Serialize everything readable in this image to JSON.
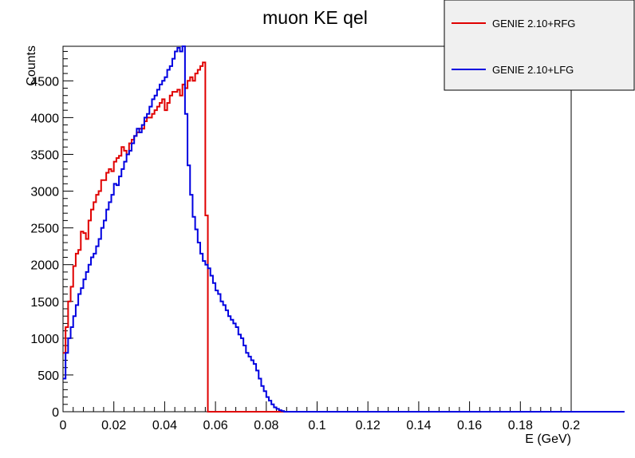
{
  "chart_data": {
    "type": "line",
    "title": "muon KE qel",
    "xlabel": "E (GeV)",
    "ylabel": "Counts",
    "xlim": [
      0,
      0.2
    ],
    "ylim": [
      0,
      4970
    ],
    "x_ticks": [
      0,
      0.02,
      0.04,
      0.06,
      0.08,
      0.1,
      0.12,
      0.14,
      0.16,
      0.18,
      0.2
    ],
    "x_tick_labels": [
      "0",
      "0.02",
      "0.04",
      "0.06",
      "0.08",
      "0.1",
      "0.12",
      "0.14",
      "0.16",
      "0.18",
      "0.2"
    ],
    "y_ticks": [
      0,
      500,
      1000,
      1500,
      2000,
      2500,
      3000,
      3500,
      4000,
      4500
    ],
    "y_tick_labels": [
      "0",
      "500",
      "1000",
      "1500",
      "2000",
      "2500",
      "3000",
      "3500",
      "4000",
      "4500"
    ],
    "grid": false,
    "legend_position": "top-right",
    "bin_width": 0.001,
    "series": [
      {
        "name": "GENIE 2.10+RFG",
        "color": "#e00000",
        "values": [
          800,
          1150,
          1500,
          1700,
          1980,
          2150,
          2200,
          2450,
          2430,
          2350,
          2600,
          2750,
          2850,
          2950,
          3000,
          3150,
          3150,
          3250,
          3300,
          3270,
          3400,
          3450,
          3480,
          3600,
          3550,
          3500,
          3650,
          3700,
          3750,
          3800,
          3850,
          3850,
          3950,
          4000,
          4000,
          4050,
          4100,
          4150,
          4200,
          4250,
          4100,
          4200,
          4300,
          4350,
          4350,
          4380,
          4300,
          4450,
          4400,
          4500,
          4550,
          4500,
          4600,
          4650,
          4700,
          4750,
          2670,
          0,
          0,
          0,
          0,
          0,
          0,
          0,
          0,
          0,
          0,
          0,
          0,
          0,
          0,
          0,
          0,
          0,
          0,
          0,
          0,
          0,
          0,
          0,
          0,
          0,
          0,
          0,
          0,
          0,
          0,
          0,
          0,
          0,
          0,
          0,
          0,
          0,
          0,
          0,
          0,
          0,
          0,
          0,
          0,
          0,
          0,
          0,
          0,
          0,
          0,
          0,
          0,
          0,
          0,
          0,
          0,
          0,
          0,
          0,
          0,
          0,
          0,
          0,
          0,
          0,
          0,
          0,
          0,
          0,
          0,
          0,
          0,
          0,
          0,
          0,
          0,
          0,
          0,
          0,
          0,
          0,
          0,
          0,
          0,
          0,
          0,
          0,
          0,
          0,
          0,
          0,
          0,
          0,
          0,
          0,
          0,
          0,
          0,
          0,
          0,
          0,
          0,
          0,
          0,
          0,
          0,
          0,
          0,
          0,
          0,
          0,
          0,
          0,
          0,
          0,
          0,
          0,
          0,
          0,
          0,
          0,
          0,
          0,
          0,
          0,
          0,
          0,
          0,
          0,
          0,
          0,
          0,
          0,
          0,
          0,
          0,
          0,
          0,
          0,
          0,
          0,
          0,
          0,
          0,
          0,
          0,
          0,
          0,
          0,
          0
        ]
      },
      {
        "name": "GENIE 2.10+LFG",
        "color": "#0000e0",
        "values": [
          450,
          800,
          1000,
          1150,
          1300,
          1450,
          1600,
          1680,
          1800,
          1900,
          2000,
          2100,
          2150,
          2250,
          2350,
          2500,
          2600,
          2750,
          2850,
          2950,
          3100,
          3080,
          3200,
          3300,
          3400,
          3500,
          3550,
          3650,
          3750,
          3850,
          3800,
          3900,
          4000,
          4050,
          4150,
          4250,
          4300,
          4380,
          4450,
          4500,
          4550,
          4650,
          4700,
          4800,
          4900,
          4950,
          4900,
          5000,
          4050,
          3350,
          2950,
          2650,
          2480,
          2300,
          2150,
          2050,
          2000,
          1950,
          1850,
          1750,
          1650,
          1600,
          1500,
          1450,
          1380,
          1300,
          1250,
          1200,
          1150,
          1050,
          1000,
          900,
          800,
          750,
          700,
          650,
          560,
          450,
          350,
          280,
          200,
          150,
          100,
          60,
          40,
          20,
          10,
          0,
          0,
          0,
          0,
          0,
          0,
          0,
          0,
          0,
          0,
          0,
          0,
          0,
          0,
          0,
          0,
          0,
          0,
          0,
          0,
          0,
          0,
          0,
          0,
          0,
          0,
          0,
          0,
          0,
          0,
          0,
          0,
          0,
          0,
          0,
          0,
          0,
          0,
          0,
          0,
          0,
          0,
          0,
          0,
          0,
          0,
          0,
          0,
          0,
          0,
          0,
          0,
          0,
          0,
          0,
          0,
          0,
          0,
          0,
          0,
          0,
          0,
          0,
          0,
          0,
          0,
          0,
          0,
          0,
          0,
          0,
          0,
          0,
          0,
          0,
          0,
          0,
          0,
          0,
          0,
          0,
          0,
          0,
          0,
          0,
          0,
          0,
          0,
          0,
          0,
          0,
          0,
          0,
          0,
          0,
          0,
          0,
          0,
          0,
          0,
          0,
          0,
          0,
          0,
          0,
          0,
          0,
          0,
          0,
          0,
          0,
          0,
          0,
          0,
          0,
          0,
          0,
          0,
          0,
          0,
          0,
          0,
          0,
          0,
          0,
          0,
          0,
          0,
          0,
          0,
          0,
          0,
          0,
          0
        ]
      }
    ]
  }
}
